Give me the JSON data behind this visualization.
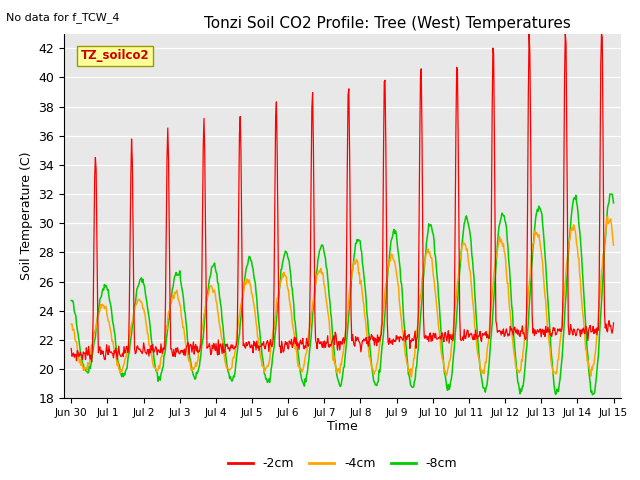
{
  "title": "Tonzi Soil CO2 Profile: Tree (West) Temperatures",
  "subtitle": "No data for f_TCW_4",
  "xlabel": "Time",
  "ylabel": "Soil Temperature (C)",
  "ylim": [
    18,
    43
  ],
  "yticks": [
    18,
    20,
    22,
    24,
    26,
    28,
    30,
    32,
    34,
    36,
    38,
    40,
    42
  ],
  "bg_color": "#e8e8e8",
  "fig_color": "#ffffff",
  "line_colors": {
    "m2cm": "#ff0000",
    "m4cm": "#ffa500",
    "m8cm": "#00cc00"
  },
  "legend_labels": [
    "-2cm",
    "-4cm",
    "-8cm"
  ],
  "legend_colors": [
    "#ff0000",
    "#ffa500",
    "#00cc00"
  ],
  "sensor_label": "TZ_soilco2",
  "sensor_label_color": "#cc0000",
  "sensor_box_color": "#ffff99",
  "sensor_box_edge": "#999900"
}
